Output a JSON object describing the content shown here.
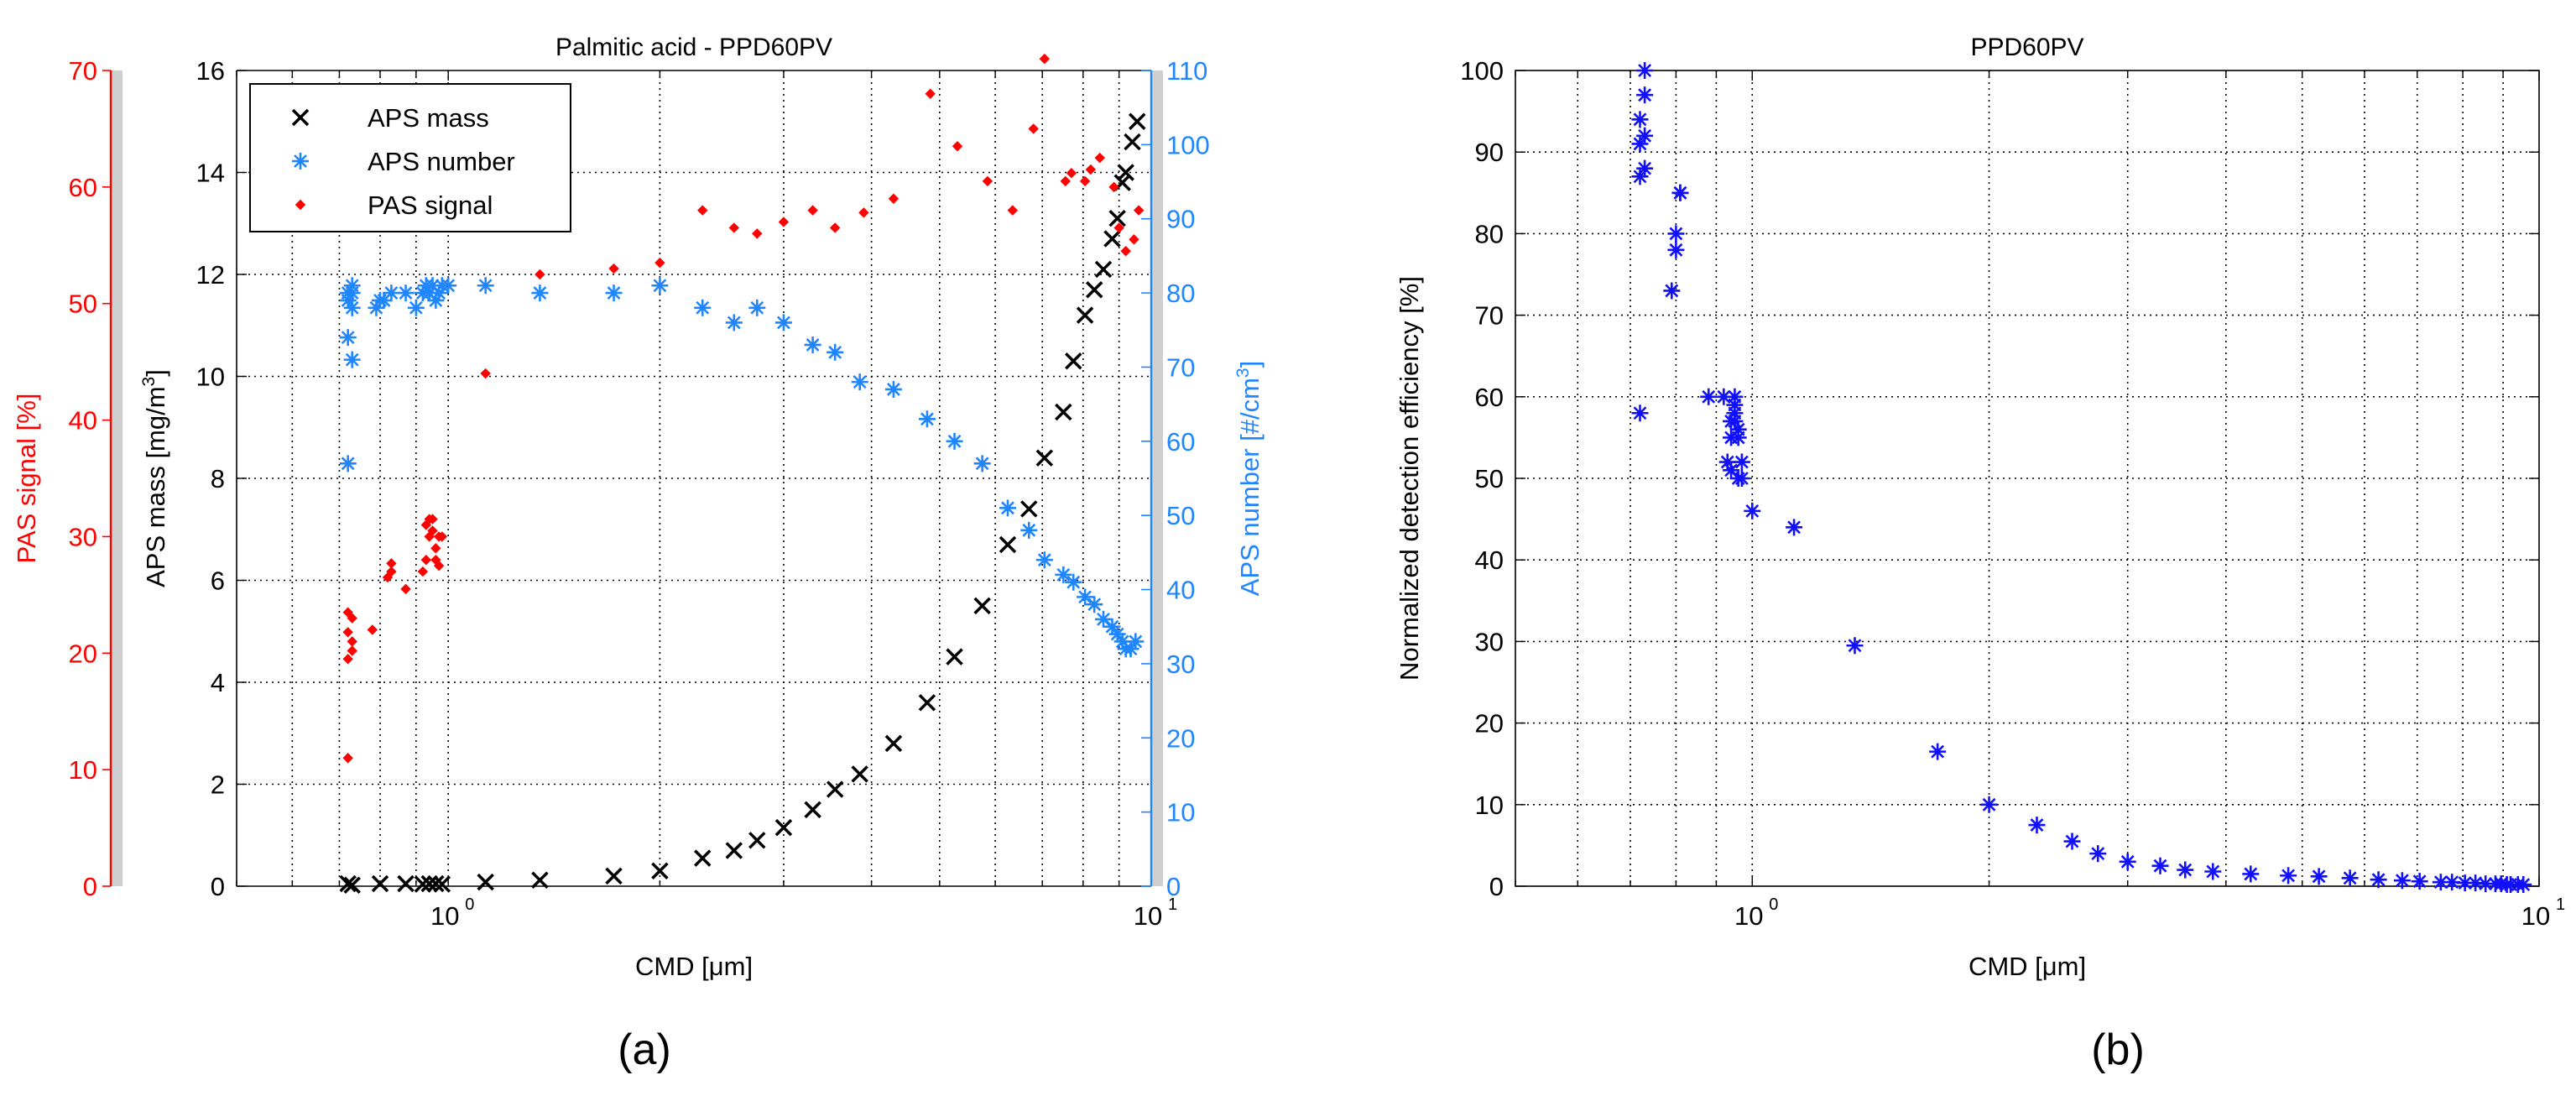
{
  "chart_data": [
    {
      "panel": "(a)",
      "type": "scatter",
      "title": "Palmitic acid - PPD60PV",
      "xlabel": "CMD [μm]",
      "xscale": "log",
      "xlim": [
        0.5,
        10
      ],
      "x_tick_labels": [
        {
          "value": 1,
          "label": "10",
          "exp": "0"
        },
        {
          "value": 10,
          "label": "10",
          "exp": "1"
        }
      ],
      "axes": {
        "mass": {
          "label": "APS mass [mg/m",
          "label_sup": "3",
          "label_end": "]",
          "color": "#000000",
          "ylim": [
            0,
            16
          ],
          "ticks": [
            0,
            2,
            4,
            6,
            8,
            10,
            12,
            14,
            16
          ]
        },
        "number": {
          "label": "APS number [#/cm",
          "label_sup": "3",
          "label_end": "]",
          "color": "#1f86ff",
          "ylim": [
            0,
            110
          ],
          "ticks": [
            0,
            10,
            20,
            30,
            40,
            50,
            60,
            70,
            80,
            90,
            100,
            110
          ]
        },
        "pas": {
          "label": "PAS signal [%]",
          "color": "#ff0000",
          "ylim": [
            0,
            70
          ],
          "ticks": [
            0,
            10,
            20,
            30,
            40,
            50,
            60,
            70
          ]
        }
      },
      "legend": {
        "placement": "top-left",
        "entries": [
          {
            "series": "aps_mass",
            "label": "APS mass"
          },
          {
            "series": "aps_number",
            "label": "APS number"
          },
          {
            "series": "pas_signal",
            "label": "PAS signal"
          }
        ]
      },
      "series": [
        {
          "name": "APS mass",
          "id": "aps_mass",
          "axis": "mass",
          "marker": "x",
          "color": "#000000",
          "x": [
            0.72,
            0.73,
            0.8,
            0.87,
            0.92,
            0.94,
            0.96,
            0.98,
            1.13,
            1.35,
            1.72,
            2.0,
            2.3,
            2.55,
            2.75,
            3.0,
            3.3,
            3.55,
            3.85,
            4.3,
            4.8,
            5.25,
            5.75,
            6.25,
            6.7,
            7.05,
            7.5,
            7.75,
            8.05,
            8.3,
            8.55,
            8.8,
            8.95,
            9.1,
            9.2,
            9.4,
            9.55
          ],
          "y": [
            0.05,
            0.02,
            0.05,
            0.05,
            0.04,
            0.05,
            0.05,
            0.04,
            0.08,
            0.12,
            0.2,
            0.3,
            0.55,
            0.7,
            0.9,
            1.15,
            1.5,
            1.9,
            2.2,
            2.8,
            3.6,
            4.5,
            5.5,
            6.7,
            7.4,
            8.4,
            9.3,
            10.3,
            11.2,
            11.7,
            12.1,
            12.7,
            13.1,
            13.8,
            14.0,
            14.6,
            15.0
          ]
        },
        {
          "name": "APS number",
          "id": "aps_number",
          "axis": "number",
          "marker": "star",
          "color": "#1f86ff",
          "x": [
            0.72,
            0.73,
            0.72,
            0.73,
            0.72,
            0.73,
            0.72,
            0.73,
            0.79,
            0.8,
            0.81,
            0.83,
            0.87,
            0.9,
            0.92,
            0.93,
            0.94,
            0.95,
            0.96,
            0.97,
            0.98,
            1.0,
            1.13,
            1.35,
            1.72,
            2.0,
            2.3,
            2.55,
            2.75,
            3.0,
            3.3,
            3.55,
            3.85,
            4.3,
            4.8,
            5.25,
            5.75,
            6.25,
            6.7,
            7.05,
            7.5,
            7.75,
            8.05,
            8.3,
            8.55,
            8.8,
            8.95,
            9.1,
            9.2,
            9.35,
            9.5
          ],
          "y": [
            57,
            71,
            74,
            78,
            79,
            80,
            80,
            81,
            78,
            79,
            79,
            80,
            80,
            78,
            80,
            81,
            80,
            81,
            79,
            80,
            81,
            81,
            81,
            80,
            80,
            81,
            78,
            76,
            78,
            76,
            73,
            72,
            68,
            67,
            63,
            60,
            57,
            51,
            48,
            44,
            42,
            41,
            39,
            38,
            36,
            35,
            34,
            33,
            32,
            32,
            33
          ]
        },
        {
          "name": "PAS signal",
          "id": "pas_signal",
          "axis": "pas",
          "marker": "diamond",
          "color": "#ff0000",
          "x": [
            0.72,
            0.72,
            0.73,
            0.73,
            0.72,
            0.73,
            0.72,
            0.78,
            0.82,
            0.83,
            0.83,
            0.87,
            0.92,
            0.93,
            0.94,
            0.95,
            0.95,
            0.96,
            0.97,
            0.97,
            0.93,
            0.94,
            0.96,
            0.98,
            1.13,
            1.35,
            1.72,
            2.0,
            2.3,
            2.55,
            2.75,
            3.0,
            3.3,
            3.55,
            3.9,
            4.3,
            4.85,
            5.3,
            5.85,
            6.35,
            6.8,
            7.05,
            7.55,
            7.7,
            8.05,
            8.2,
            8.45,
            8.85,
            9.0,
            9.2,
            9.45,
            9.6
          ],
          "y": [
            11,
            19.5,
            20.2,
            21,
            21.8,
            23,
            23.5,
            22,
            26.5,
            27,
            27.7,
            25.5,
            27,
            28,
            30,
            31.5,
            30.5,
            29,
            27.5,
            30,
            31,
            31.5,
            28,
            30,
            44,
            52.5,
            53,
            53.5,
            58,
            56.5,
            56,
            57,
            58,
            56.5,
            57.8,
            59,
            68,
            63.5,
            60.5,
            58,
            65,
            71,
            60.5,
            61.2,
            60.5,
            61.5,
            62.5,
            60,
            56.5,
            54.5,
            55.5,
            58
          ]
        }
      ]
    },
    {
      "panel": "(b)",
      "type": "scatter",
      "title": "PPD60PV",
      "xlabel": "CMD [μm]",
      "ylabel": "Normalized detection efficiency [%]",
      "xscale": "log",
      "xlim": [
        0.5,
        10
      ],
      "ylim": [
        0,
        100
      ],
      "y_ticks": [
        0,
        10,
        20,
        30,
        40,
        50,
        60,
        70,
        80,
        90,
        100
      ],
      "x_tick_labels": [
        {
          "value": 1,
          "label": "10",
          "exp": "0"
        },
        {
          "value": 10,
          "label": "10",
          "exp": "1"
        }
      ],
      "series": [
        {
          "name": "Normalized detection efficiency",
          "marker": "star",
          "color": "#1010ff",
          "x": [
            0.72,
            0.72,
            0.73,
            0.72,
            0.73,
            0.72,
            0.73,
            0.73,
            0.79,
            0.8,
            0.8,
            0.81,
            0.81,
            0.88,
            0.92,
            0.93,
            0.94,
            0.94,
            0.94,
            0.95,
            0.95,
            0.95,
            0.95,
            0.96,
            0.96,
            0.96,
            0.97,
            0.97,
            1.0,
            1.13,
            1.35,
            1.72,
            2.0,
            2.3,
            2.55,
            2.75,
            3.0,
            3.3,
            3.55,
            3.85,
            4.3,
            4.8,
            5.25,
            5.75,
            6.25,
            6.7,
            7.05,
            7.5,
            7.75,
            8.05,
            8.3,
            8.55,
            8.8,
            8.95,
            9.1,
            9.2,
            9.4,
            9.55
          ],
          "y": [
            58,
            87,
            88,
            91,
            92,
            94,
            97,
            100,
            73,
            78,
            80,
            85,
            85,
            60,
            60,
            52,
            51,
            55,
            57,
            58,
            59,
            60,
            57,
            56,
            55,
            50,
            50,
            52,
            46,
            44,
            29.5,
            16.5,
            10,
            7.5,
            5.5,
            4,
            3,
            2.5,
            2,
            1.8,
            1.5,
            1.3,
            1.2,
            1,
            0.8,
            0.7,
            0.6,
            0.5,
            0.5,
            0.4,
            0.4,
            0.3,
            0.3,
            0.3,
            0.2,
            0.2,
            0.2,
            0.2
          ]
        }
      ]
    }
  ],
  "captions": {
    "a": "(a)",
    "b": "(b)"
  }
}
